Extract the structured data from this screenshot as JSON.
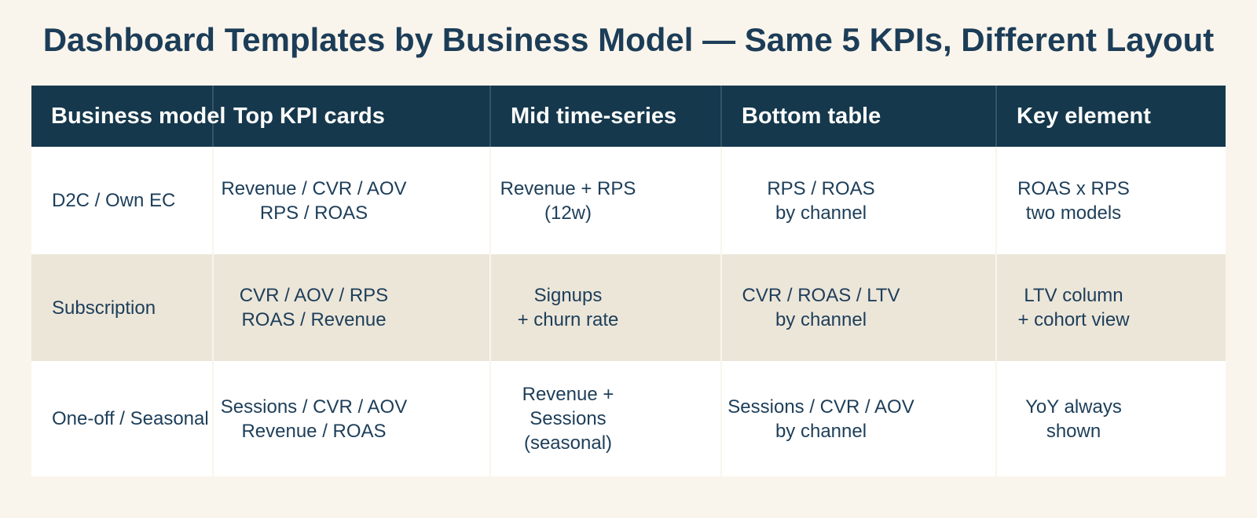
{
  "title": "Dashboard Templates by Business Model — Same 5 KPIs, Different Layout",
  "colors": {
    "page_bg": "#FAF5EC",
    "header_bg": "#15384D",
    "header_text": "#FDFDFB",
    "alt_row_bg": "#ECE6D9",
    "row_bg": "#FFFFFF",
    "body_text": "#1D3E59",
    "title_text": "#1C3D58"
  },
  "table": {
    "columns": [
      {
        "label": "Business model"
      },
      {
        "label": "Top KPI cards"
      },
      {
        "label": "Mid time-series"
      },
      {
        "label": "Bottom table"
      },
      {
        "label": "Key element"
      }
    ],
    "rows": [
      {
        "business_model": "D2C / Own EC",
        "top_kpi_cards": [
          "Revenue / CVR / AOV",
          "RPS / ROAS"
        ],
        "mid_time_series": [
          "Revenue + RPS",
          "(12w)"
        ],
        "bottom_table": [
          "RPS / ROAS",
          "by channel"
        ],
        "key_element": [
          "ROAS x RPS",
          "two models"
        ]
      },
      {
        "business_model": "Subscription",
        "top_kpi_cards": [
          "CVR / AOV / RPS",
          "ROAS / Revenue"
        ],
        "mid_time_series": [
          "Signups",
          "+ churn rate"
        ],
        "bottom_table": [
          "CVR / ROAS / LTV",
          "by channel"
        ],
        "key_element": [
          "LTV column",
          "+ cohort view"
        ]
      },
      {
        "business_model": "One-off / Seasonal",
        "top_kpi_cards": [
          "Sessions / CVR / AOV",
          "Revenue / ROAS"
        ],
        "mid_time_series": [
          "Revenue + Sessions",
          "(seasonal)"
        ],
        "bottom_table": [
          "Sessions / CVR / AOV",
          "by channel"
        ],
        "key_element": [
          "YoY always",
          "shown"
        ]
      }
    ]
  }
}
